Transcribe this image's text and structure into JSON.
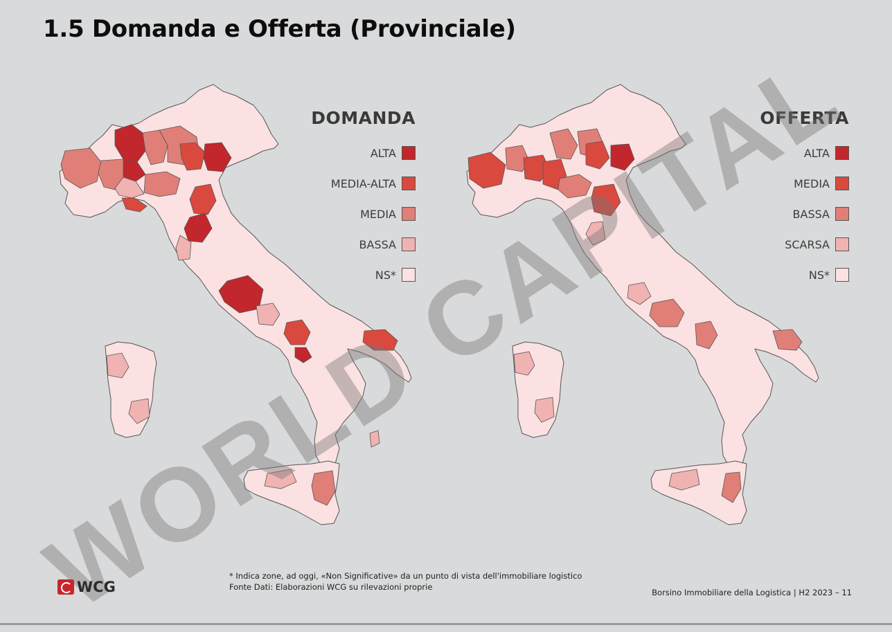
{
  "page_title": "1.5 Domanda e Offerta (Provinciale)",
  "colors": {
    "alta": "#c1272d",
    "media_alta": "#d9493e",
    "media": "#e07f78",
    "bassa": "#f0b3b2",
    "ns": "#fbe1e1",
    "border": "#555555"
  },
  "maps": {
    "domanda": {
      "title": "DOMANDA",
      "legend": [
        {
          "label": "ALTA",
          "level": "alta"
        },
        {
          "label": "MEDIA-ALTA",
          "level": "media_alta"
        },
        {
          "label": "MEDIA",
          "level": "media"
        },
        {
          "label": "BASSA",
          "level": "bassa"
        },
        {
          "label": "NS*",
          "level": "ns"
        }
      ]
    },
    "offerta": {
      "title": "OFFERTA",
      "legend": [
        {
          "label": "ALTA",
          "level": "alta"
        },
        {
          "label": "MEDIA",
          "level": "media_alta"
        },
        {
          "label": "BASSA",
          "level": "media"
        },
        {
          "label": "SCARSA",
          "level": "bassa"
        },
        {
          "label": "NS*",
          "level": "ns"
        }
      ]
    }
  },
  "watermark": "WORLD CAPITAL",
  "logo": {
    "text": "WCG"
  },
  "footnote": {
    "line1": "* Indica zone, ad oggi, «Non Significative» da un punto di vista dell'immobiliare logistico",
    "line2": "Fonte Dati: Elaborazioni WCG su rilevazioni proprie"
  },
  "footer": "Borsino Immobiliare della Logistica | H2 2023 – 11"
}
